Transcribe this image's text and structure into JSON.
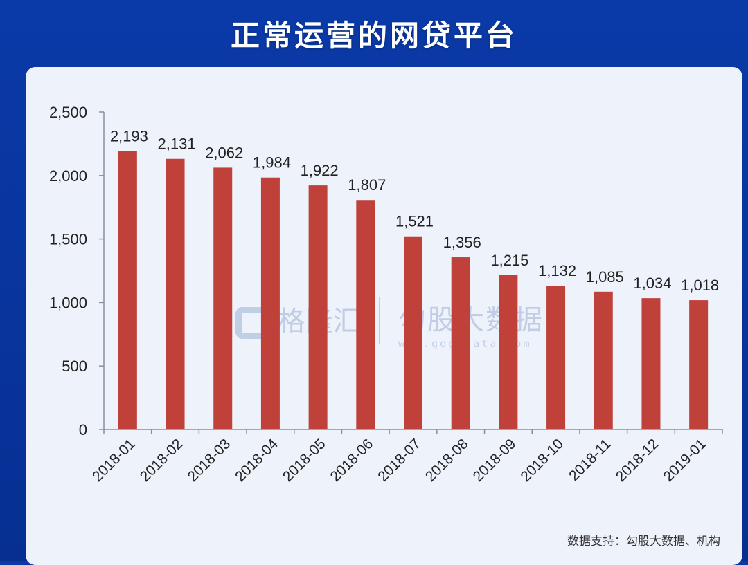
{
  "header": {
    "title": "正常运营的网贷平台"
  },
  "watermark": {
    "left_brand": "格隆汇",
    "right_brand": "勾股大数据",
    "right_url": "www.gogudata.com"
  },
  "footer": {
    "source": "数据支持：勾股大数据、机构"
  },
  "colors": {
    "bar": "#c0403a",
    "background": "#0a3aa8",
    "panel": "#eef3fb",
    "axis": "#8a8f99"
  },
  "y_ticks": [
    "2,500",
    "2,000",
    "1,500",
    "1,000",
    "500",
    "0"
  ],
  "data_labels": [
    "2,193",
    "2,131",
    "2,062",
    "1,984",
    "1,922",
    "1,807",
    "1,521",
    "1,356",
    "1,215",
    "1,132",
    "1,085",
    "1,034",
    "1,018"
  ],
  "chart_data": {
    "type": "bar",
    "title": "正常运营的网贷平台",
    "xlabel": "",
    "ylabel": "",
    "categories": [
      "2018-01",
      "2018-02",
      "2018-03",
      "2018-04",
      "2018-05",
      "2018-06",
      "2018-07",
      "2018-08",
      "2018-09",
      "2018-10",
      "2018-11",
      "2018-12",
      "2019-01"
    ],
    "values": [
      2193,
      2131,
      2062,
      1984,
      1922,
      1807,
      1521,
      1356,
      1215,
      1132,
      1085,
      1034,
      1018
    ],
    "ylim": [
      0,
      2500
    ],
    "yticks": [
      0,
      500,
      1000,
      1500,
      2000,
      2500
    ],
    "grid": false,
    "legend": null,
    "data_labels": true,
    "bar_color": "#c0403a",
    "source": "数据支持：勾股大数据、机构"
  }
}
